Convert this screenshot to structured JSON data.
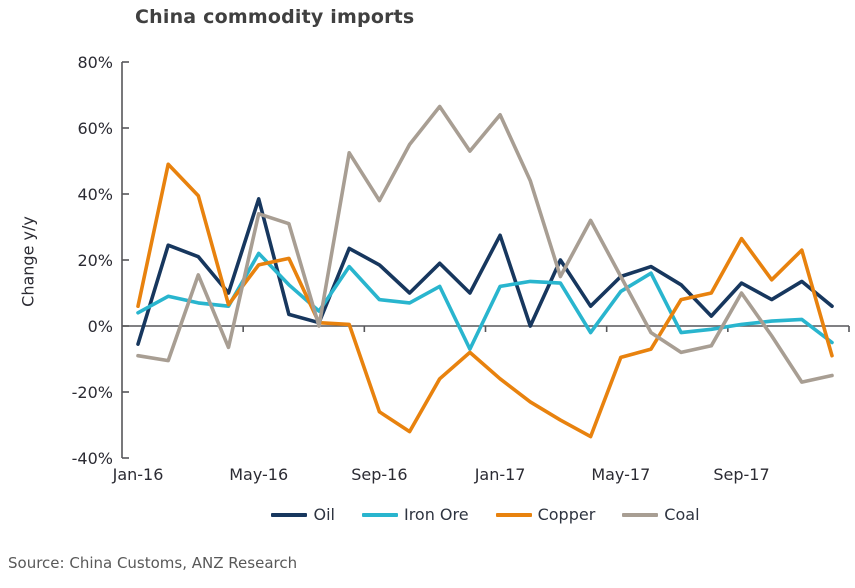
{
  "title": "China commodity imports",
  "source": "Source: China Customs, ANZ Research",
  "chart_data": {
    "type": "line",
    "title": "China commodity imports",
    "ylabel": "Change y/y",
    "xlabel": "",
    "grid": false,
    "legend_position": "bottom",
    "ylim": [
      -40,
      80
    ],
    "yticks": [
      80,
      60,
      40,
      20,
      0,
      -20,
      -40
    ],
    "ytick_suffix": "%",
    "x": [
      "Jan-16",
      "Feb-16",
      "Mar-16",
      "Apr-16",
      "May-16",
      "Jun-16",
      "Jul-16",
      "Aug-16",
      "Sep-16",
      "Oct-16",
      "Nov-16",
      "Dec-16",
      "Jan-17",
      "Feb-17",
      "Mar-17",
      "Apr-17",
      "May-17",
      "Jun-17",
      "Jul-17",
      "Aug-17",
      "Sep-17",
      "Oct-17",
      "Nov-17",
      "Dec-17"
    ],
    "xtick_labels": [
      "Jan-16",
      "May-16",
      "Sep-16",
      "Jan-17",
      "May-17",
      "Sep-17"
    ],
    "series": [
      {
        "name": "Oil",
        "color": "#17375e",
        "values": [
          -5.5,
          24.5,
          21,
          10,
          38.5,
          3.5,
          1,
          23.5,
          18.5,
          10,
          19,
          10,
          27.5,
          0,
          20,
          6,
          15,
          18,
          12.5,
          3,
          13,
          8,
          13.5,
          6
        ]
      },
      {
        "name": "Iron Ore",
        "color": "#29b5ce",
        "values": [
          4,
          9,
          7,
          6,
          22,
          12.5,
          4.5,
          18,
          8,
          7,
          12,
          -7,
          12,
          13.5,
          13,
          -2,
          10.5,
          16,
          -2,
          -1,
          0.5,
          1.5,
          2,
          -5
        ]
      },
      {
        "name": "Copper",
        "color": "#e8820e",
        "values": [
          6,
          49,
          39.5,
          6.5,
          18.5,
          20.5,
          1,
          0.5,
          -26,
          -32,
          -16,
          -8,
          -16,
          -23,
          -28.5,
          -33.5,
          -9.5,
          -7,
          8,
          10,
          26.5,
          14,
          23,
          -9
        ]
      },
      {
        "name": "Coal",
        "color": "#a89e93",
        "values": [
          -9,
          -10.5,
          15.5,
          -6.5,
          34,
          31,
          0,
          52.5,
          38,
          55,
          66.5,
          53,
          64,
          44,
          15,
          32,
          15,
          -2,
          -8,
          -6,
          10,
          -3,
          -17,
          -15
        ]
      }
    ]
  },
  "axis_color": "#57575a",
  "tick_label_color": "#2b2b33"
}
